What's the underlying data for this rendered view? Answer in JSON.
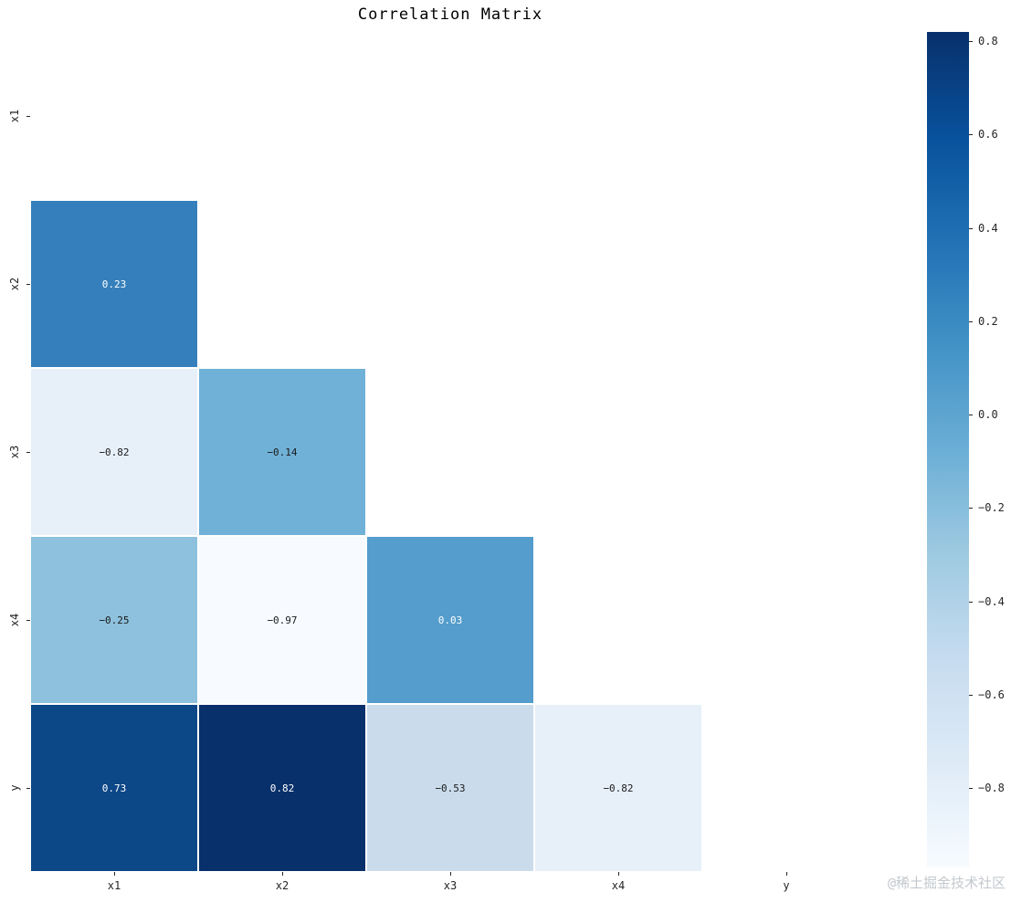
{
  "figure": {
    "title": "Correlation Matrix",
    "watermark": "@稀土掘金技术社区"
  },
  "chart_data": {
    "type": "heatmap",
    "title": "Correlation Matrix",
    "colormap": "Blues",
    "mask": "upper-triangle-and-diagonal-hidden",
    "vmin": -0.97,
    "vmax": 0.82,
    "variables": [
      "x1",
      "x2",
      "x3",
      "x4",
      "y"
    ],
    "x_tick_labels": [
      "x1",
      "x2",
      "x3",
      "x4",
      "y"
    ],
    "y_tick_labels": [
      "x1",
      "x2",
      "x3",
      "x4",
      "y"
    ],
    "cells": [
      {
        "row": "x2",
        "col": "x1",
        "value": 0.23,
        "label": "0.23",
        "color": "#3580bc",
        "text_color": "#ffffff"
      },
      {
        "row": "x3",
        "col": "x1",
        "value": -0.82,
        "label": "−0.82",
        "color": "#e7f0f9",
        "text_color": "#1a1a1a"
      },
      {
        "row": "x3",
        "col": "x2",
        "value": -0.14,
        "label": "−0.14",
        "color": "#70b1d7",
        "text_color": "#1a1a1a"
      },
      {
        "row": "x4",
        "col": "x1",
        "value": -0.25,
        "label": "−0.25",
        "color": "#8dc1dd",
        "text_color": "#1a1a1a"
      },
      {
        "row": "x4",
        "col": "x2",
        "value": -0.97,
        "label": "−0.97",
        "color": "#f7fbff",
        "text_color": "#1a1a1a"
      },
      {
        "row": "x4",
        "col": "x3",
        "value": 0.03,
        "label": "0.03",
        "color": "#549dcc",
        "text_color": "#ffffff"
      },
      {
        "row": "y",
        "col": "x1",
        "value": 0.73,
        "label": "0.73",
        "color": "#0c4787",
        "text_color": "#ffffff"
      },
      {
        "row": "y",
        "col": "x2",
        "value": 0.82,
        "label": "0.82",
        "color": "#08306b",
        "text_color": "#ffffff"
      },
      {
        "row": "y",
        "col": "x3",
        "value": -0.53,
        "label": "−0.53",
        "color": "#cadcec",
        "text_color": "#1a1a1a"
      },
      {
        "row": "y",
        "col": "x4",
        "value": -0.82,
        "label": "−0.82",
        "color": "#e7f0f9",
        "text_color": "#1a1a1a"
      }
    ],
    "colorbar": {
      "orientation": "vertical",
      "ticks": [
        {
          "value": 0.8,
          "label": "0.8"
        },
        {
          "value": 0.6,
          "label": "0.6"
        },
        {
          "value": 0.4,
          "label": "0.4"
        },
        {
          "value": 0.2,
          "label": "0.2"
        },
        {
          "value": 0.0,
          "label": "0.0"
        },
        {
          "value": -0.2,
          "label": "−0.2"
        },
        {
          "value": -0.4,
          "label": "−0.4"
        },
        {
          "value": -0.6,
          "label": "−0.6"
        },
        {
          "value": -0.8,
          "label": "−0.8"
        }
      ],
      "gradient": [
        {
          "t": 1.0,
          "color": "#08306b"
        },
        {
          "t": 0.875,
          "color": "#08519c"
        },
        {
          "t": 0.75,
          "color": "#2171b5"
        },
        {
          "t": 0.625,
          "color": "#4292c6"
        },
        {
          "t": 0.5,
          "color": "#6baed6"
        },
        {
          "t": 0.375,
          "color": "#9ecae1"
        },
        {
          "t": 0.25,
          "color": "#c6dbef"
        },
        {
          "t": 0.125,
          "color": "#deebf7"
        },
        {
          "t": 0.0,
          "color": "#f7fbff"
        }
      ]
    }
  }
}
